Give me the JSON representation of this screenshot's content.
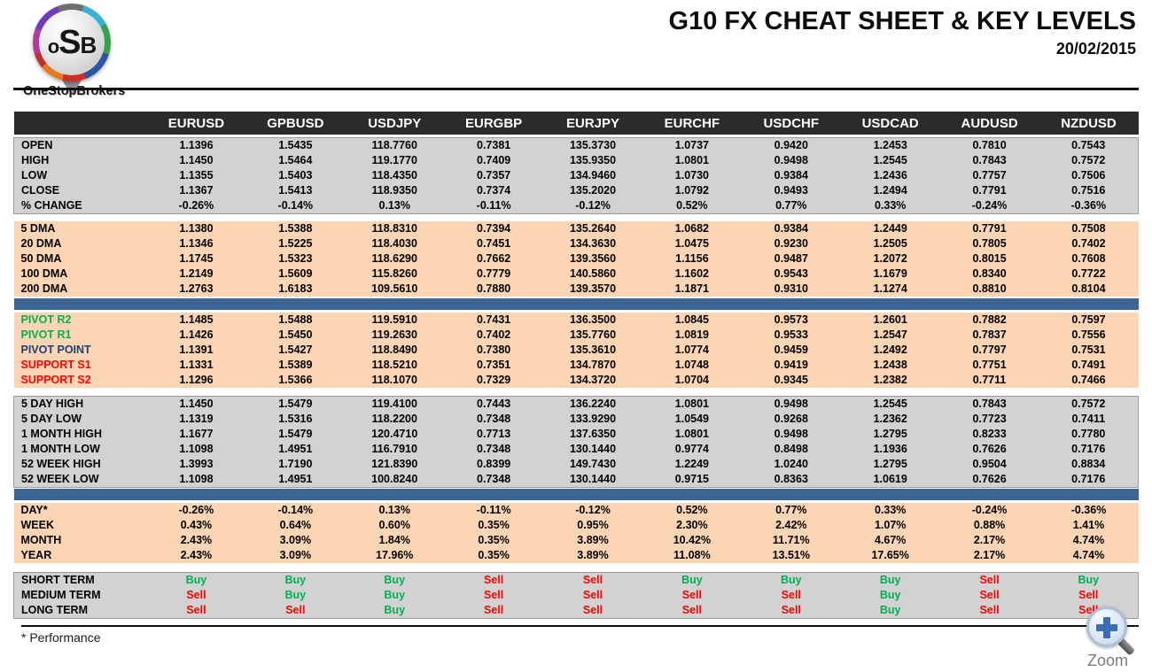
{
  "brand": {
    "logo_o": "o",
    "logo_s": "S",
    "logo_b": "B",
    "logo_name": "OneStopBrokers"
  },
  "header": {
    "title": "G10 FX CHEAT SHEET & KEY LEVELS",
    "date": "20/02/2015"
  },
  "table": {
    "corner_label": "",
    "columns": [
      "EURUSD",
      "GPBUSD",
      "USDJPY",
      "EURGBP",
      "EURJPY",
      "EURCHF",
      "USDCHF",
      "USDCAD",
      "AUDUSD",
      "NZDUSD"
    ],
    "sections": [
      {
        "type": "gap",
        "h": 3
      },
      {
        "type": "rows",
        "bg": "gray",
        "rows": [
          {
            "label": "OPEN",
            "values": [
              "1.1396",
              "1.5435",
              "118.7760",
              "0.7381",
              "135.3730",
              "1.0737",
              "0.9420",
              "1.2453",
              "0.7810",
              "0.7543"
            ]
          },
          {
            "label": "HIGH",
            "values": [
              "1.1450",
              "1.5464",
              "119.1770",
              "0.7409",
              "135.9350",
              "1.0801",
              "0.9498",
              "1.2545",
              "0.7843",
              "0.7572"
            ]
          },
          {
            "label": "LOW",
            "values": [
              "1.1355",
              "1.5403",
              "118.4350",
              "0.7357",
              "134.9460",
              "1.0730",
              "0.9384",
              "1.2436",
              "0.7757",
              "0.7506"
            ]
          },
          {
            "label": "CLOSE",
            "values": [
              "1.1367",
              "1.5413",
              "118.9350",
              "0.7374",
              "135.2020",
              "1.0792",
              "0.9493",
              "1.2494",
              "0.7791",
              "0.7516"
            ]
          },
          {
            "label": "% CHANGE",
            "values": [
              "-0.26%",
              "-0.14%",
              "0.13%",
              "-0.11%",
              "-0.12%",
              "0.52%",
              "0.77%",
              "0.33%",
              "-0.24%",
              "-0.36%"
            ]
          }
        ]
      },
      {
        "type": "gap",
        "h": 9
      },
      {
        "type": "rows",
        "bg": "peach",
        "rows": [
          {
            "label": "5 DMA",
            "values": [
              "1.1380",
              "1.5388",
              "118.8310",
              "0.7394",
              "135.2640",
              "1.0682",
              "0.9384",
              "1.2449",
              "0.7791",
              "0.7508"
            ]
          },
          {
            "label": "20 DMA",
            "values": [
              "1.1346",
              "1.5225",
              "118.4030",
              "0.7451",
              "134.3630",
              "1.0475",
              "0.9230",
              "1.2505",
              "0.7805",
              "0.7402"
            ]
          },
          {
            "label": "50 DMA",
            "values": [
              "1.1745",
              "1.5323",
              "118.6290",
              "0.7662",
              "139.3560",
              "1.1156",
              "0.9487",
              "1.2072",
              "0.8015",
              "0.7608"
            ]
          },
          {
            "label": "100 DMA",
            "values": [
              "1.2149",
              "1.5609",
              "115.8260",
              "0.7779",
              "140.5860",
              "1.1602",
              "0.9543",
              "1.1679",
              "0.8340",
              "0.7722"
            ]
          },
          {
            "label": "200 DMA",
            "values": [
              "1.2763",
              "1.6183",
              "109.5610",
              "0.7880",
              "139.3570",
              "1.1871",
              "0.9310",
              "1.1274",
              "0.8810",
              "0.8104"
            ]
          }
        ]
      },
      {
        "type": "gap",
        "h": 2
      },
      {
        "type": "bar"
      },
      {
        "type": "gap",
        "h": 3
      },
      {
        "type": "rows",
        "bg": "peach",
        "rows": [
          {
            "label": "PIVOT R2",
            "lc": "lbl-green",
            "values": [
              "1.1485",
              "1.5488",
              "119.5910",
              "0.7431",
              "136.3500",
              "1.0845",
              "0.9573",
              "1.2601",
              "0.7882",
              "0.7597"
            ]
          },
          {
            "label": "PIVOT R1",
            "lc": "lbl-green",
            "values": [
              "1.1426",
              "1.5450",
              "119.2630",
              "0.7402",
              "135.7760",
              "1.0819",
              "0.9533",
              "1.2547",
              "0.7837",
              "0.7556"
            ]
          },
          {
            "label": "PIVOT POINT",
            "lc": "lbl-navy",
            "values": [
              "1.1391",
              "1.5427",
              "118.8490",
              "0.7380",
              "135.3610",
              "1.0774",
              "0.9459",
              "1.2492",
              "0.7797",
              "0.7531"
            ]
          },
          {
            "label": "SUPPORT S1",
            "lc": "lbl-red",
            "values": [
              "1.1331",
              "1.5389",
              "118.5210",
              "0.7351",
              "134.7870",
              "1.0748",
              "0.9419",
              "1.2438",
              "0.7751",
              "0.7491"
            ]
          },
          {
            "label": "SUPPORT S2",
            "lc": "lbl-red",
            "values": [
              "1.1296",
              "1.5366",
              "118.1070",
              "0.7329",
              "134.3720",
              "1.0704",
              "0.9345",
              "1.2382",
              "0.7711",
              "0.7466"
            ]
          }
        ]
      },
      {
        "type": "gap",
        "h": 9
      },
      {
        "type": "rows",
        "bg": "gray",
        "rows": [
          {
            "label": "5 DAY HIGH",
            "values": [
              "1.1450",
              "1.5479",
              "119.4100",
              "0.7443",
              "136.2240",
              "1.0801",
              "0.9498",
              "1.2545",
              "0.7843",
              "0.7572"
            ]
          },
          {
            "label": "5 DAY LOW",
            "values": [
              "1.1319",
              "1.5316",
              "118.2200",
              "0.7348",
              "133.9290",
              "1.0549",
              "0.9268",
              "1.2362",
              "0.7723",
              "0.7411"
            ]
          },
          {
            "label": "1 MONTH HIGH",
            "values": [
              "1.1677",
              "1.5479",
              "120.4710",
              "0.7713",
              "137.6350",
              "1.0801",
              "0.9498",
              "1.2795",
              "0.8233",
              "0.7780"
            ]
          },
          {
            "label": "1 MONTH LOW",
            "values": [
              "1.1098",
              "1.4951",
              "116.7910",
              "0.7348",
              "130.1440",
              "0.9774",
              "0.8498",
              "1.1936",
              "0.7626",
              "0.7176"
            ]
          },
          {
            "label": "52 WEEK HIGH",
            "values": [
              "1.3993",
              "1.7190",
              "121.8390",
              "0.8399",
              "149.7430",
              "1.2249",
              "1.0240",
              "1.2795",
              "0.9504",
              "0.8834"
            ]
          },
          {
            "label": "52 WEEK LOW",
            "values": [
              "1.1098",
              "1.4951",
              "100.8240",
              "0.7348",
              "130.1440",
              "0.9715",
              "0.8363",
              "1.0619",
              "0.7626",
              "0.7176"
            ]
          }
        ]
      },
      {
        "type": "gap",
        "h": 2
      },
      {
        "type": "bar"
      },
      {
        "type": "gap",
        "h": 3
      },
      {
        "type": "rows",
        "bg": "peach",
        "rows": [
          {
            "label": "DAY*",
            "values": [
              "-0.26%",
              "-0.14%",
              "0.13%",
              "-0.11%",
              "-0.12%",
              "0.52%",
              "0.77%",
              "0.33%",
              "-0.24%",
              "-0.36%"
            ]
          },
          {
            "label": "WEEK",
            "values": [
              "0.43%",
              "0.64%",
              "0.60%",
              "0.35%",
              "0.95%",
              "2.30%",
              "2.42%",
              "1.07%",
              "0.88%",
              "1.41%"
            ]
          },
          {
            "label": "MONTH",
            "values": [
              "2.43%",
              "3.09%",
              "1.84%",
              "0.35%",
              "3.89%",
              "10.42%",
              "11.71%",
              "4.67%",
              "2.17%",
              "4.74%"
            ]
          },
          {
            "label": "YEAR",
            "values": [
              "2.43%",
              "3.09%",
              "17.96%",
              "0.35%",
              "3.89%",
              "11.08%",
              "13.51%",
              "17.65%",
              "2.17%",
              "4.74%"
            ]
          }
        ]
      },
      {
        "type": "gap",
        "h": 10
      },
      {
        "type": "rows",
        "bg": "gray",
        "rows": [
          {
            "label": "SHORT TERM",
            "values": [
              "Buy",
              "Buy",
              "Buy",
              "Sell",
              "Sell",
              "Buy",
              "Buy",
              "Buy",
              "Sell",
              "Buy"
            ]
          },
          {
            "label": "MEDIUM TERM",
            "values": [
              "Sell",
              "Buy",
              "Buy",
              "Sell",
              "Sell",
              "Sell",
              "Sell",
              "Buy",
              "Sell",
              "Sell"
            ]
          },
          {
            "label": "LONG TERM",
            "values": [
              "Sell",
              "Sell",
              "Buy",
              "Sell",
              "Sell",
              "Sell",
              "Sell",
              "Buy",
              "Sell",
              "Sell"
            ]
          }
        ]
      }
    ]
  },
  "footer": {
    "note": "* Performance"
  },
  "zoom_widget": {
    "label": "Zoom",
    "icon": "magnifier-plus-icon"
  },
  "colors": {
    "header_bg": "#2b2b2b",
    "section_gray": "#d2d2d2",
    "section_peach": "#fbd5b4",
    "separator_blue": "#3c6494",
    "buy_green": "#00b050",
    "sell_red": "#fd0202",
    "pivot_navy": "#1f3f73"
  }
}
